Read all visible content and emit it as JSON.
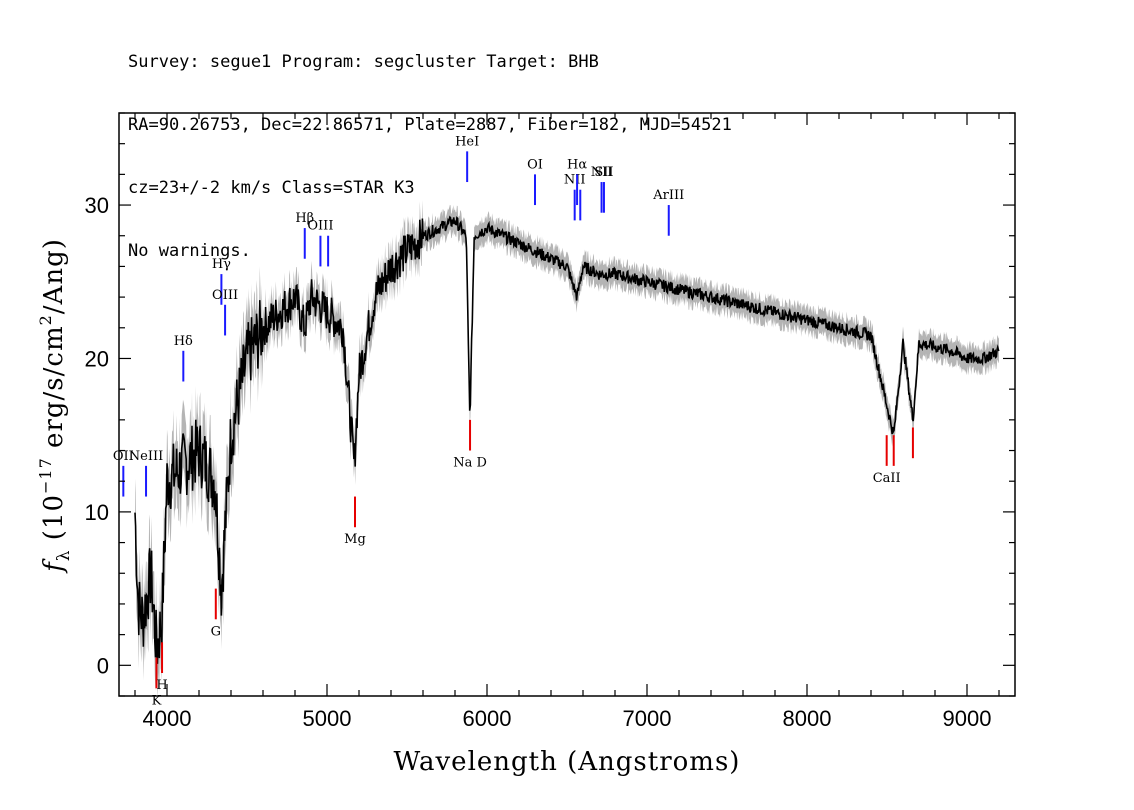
{
  "header": {
    "line1": "Survey: segue1 Program: segcluster Target: BHB",
    "line2": "RA=90.26753, Dec=22.86571, Plate=2887, Fiber=182, MJD=54521",
    "line3": "cz=23+/-2 km/s Class=STAR K3",
    "line4": "No warnings."
  },
  "chart_data": {
    "type": "line",
    "title": "",
    "xlabel": "Wavelength (Angstroms)",
    "ylabel": "f_λ (10^-17 erg/s/cm^2/Ang)",
    "ylabel_parts": {
      "flam": "f",
      "sub": "λ",
      "p1": " (10",
      "exp1": "−17",
      "p2": " erg/s/cm",
      "exp2": "2",
      "p3": "/Ang)"
    },
    "xlim": [
      3700,
      9300
    ],
    "ylim": [
      -2,
      36
    ],
    "xticks": [
      4000,
      5000,
      6000,
      7000,
      8000,
      9000
    ],
    "yticks": [
      0,
      10,
      20,
      30
    ],
    "colors": {
      "flux": "#000000",
      "error": "#b4b4b4",
      "emission": "#1a1aff",
      "absorption": "#e60000"
    },
    "spectrum_anchors": [
      [
        3800,
        10
      ],
      [
        3820,
        4
      ],
      [
        3850,
        3
      ],
      [
        3900,
        6
      ],
      [
        3935,
        1
      ],
      [
        3968,
        3
      ],
      [
        4000,
        12
      ],
      [
        4100,
        13
      ],
      [
        4200,
        14
      ],
      [
        4300,
        12
      ],
      [
        4340,
        5
      ],
      [
        4400,
        15
      ],
      [
        4500,
        20
      ],
      [
        4600,
        22
      ],
      [
        4700,
        23
      ],
      [
        4800,
        24
      ],
      [
        4861,
        22
      ],
      [
        4900,
        24
      ],
      [
        5000,
        23
      ],
      [
        5100,
        22
      ],
      [
        5170,
        13
      ],
      [
        5200,
        19
      ],
      [
        5300,
        24
      ],
      [
        5400,
        26
      ],
      [
        5500,
        27
      ],
      [
        5600,
        28
      ],
      [
        5700,
        28.5
      ],
      [
        5800,
        29
      ],
      [
        5870,
        28
      ],
      [
        5893,
        16
      ],
      [
        5920,
        28
      ],
      [
        6000,
        28.5
      ],
      [
        6100,
        28
      ],
      [
        6200,
        27.5
      ],
      [
        6300,
        27
      ],
      [
        6400,
        26.5
      ],
      [
        6500,
        26
      ],
      [
        6563,
        24
      ],
      [
        6600,
        26
      ],
      [
        6700,
        25.5
      ],
      [
        6800,
        25.5
      ],
      [
        7000,
        25
      ],
      [
        7200,
        24.5
      ],
      [
        7400,
        24
      ],
      [
        7600,
        23.5
      ],
      [
        7800,
        23
      ],
      [
        8000,
        22.5
      ],
      [
        8200,
        22
      ],
      [
        8400,
        21.5
      ],
      [
        8498,
        17
      ],
      [
        8542,
        15
      ],
      [
        8600,
        21
      ],
      [
        8662,
        16
      ],
      [
        8700,
        21
      ],
      [
        8900,
        20.5
      ],
      [
        9000,
        20
      ],
      [
        9100,
        20
      ],
      [
        9200,
        20.5
      ]
    ],
    "emission_lines": [
      {
        "label": "OII",
        "wave": 3727,
        "y1": 11,
        "y2": 13
      },
      {
        "label": "NeIII",
        "wave": 3869,
        "y1": 11,
        "y2": 13
      },
      {
        "label": "Hδ",
        "wave": 4102,
        "y1": 18.5,
        "y2": 20.5
      },
      {
        "label": "Hγ",
        "wave": 4340,
        "y1": 23.5,
        "y2": 25.5
      },
      {
        "label": "OIII",
        "wave": 4363,
        "y1": 21.5,
        "y2": 23.5
      },
      {
        "label": "Hβ",
        "wave": 4861,
        "y1": 26.5,
        "y2": 28.5
      },
      {
        "label": "OIII",
        "wave": 4959,
        "y1": 26,
        "y2": 28
      },
      {
        "label": "",
        "wave": 5007,
        "y1": 26,
        "y2": 28
      },
      {
        "label": "HeI",
        "wave": 5876,
        "y1": 31.5,
        "y2": 33.5
      },
      {
        "label": "OI",
        "wave": 6300,
        "y1": 30,
        "y2": 32
      },
      {
        "label": "NII",
        "wave": 6548,
        "y1": 29,
        "y2": 31
      },
      {
        "label": "Hα",
        "wave": 6563,
        "y1": 30,
        "y2": 32
      },
      {
        "label": "",
        "wave": 6583,
        "y1": 29,
        "y2": 31
      },
      {
        "label": "NII",
        "wave": 6716,
        "y1": 29.5,
        "y2": 31.5
      },
      {
        "label": "SII",
        "wave": 6731,
        "y1": 29.5,
        "y2": 31.5
      },
      {
        "label": "ArIII",
        "wave": 7136,
        "y1": 28,
        "y2": 30
      }
    ],
    "absorption_lines": [
      {
        "label": "K",
        "wave": 3934,
        "y1": -1.5,
        "y2": 0.5
      },
      {
        "label": "H",
        "wave": 3969,
        "y1": -0.5,
        "y2": 1.5
      },
      {
        "label": "G",
        "wave": 4305,
        "y1": 3,
        "y2": 5
      },
      {
        "label": "Mg",
        "wave": 5175,
        "y1": 9,
        "y2": 11
      },
      {
        "label": "Na D",
        "wave": 5894,
        "y1": 14,
        "y2": 16
      },
      {
        "label": "CaII",
        "wave": 8498,
        "y1": 13,
        "y2": 15
      },
      {
        "label": "",
        "wave": 8542,
        "y1": 13,
        "y2": 15
      },
      {
        "label": "",
        "wave": 8662,
        "y1": 13.5,
        "y2": 15.5
      }
    ]
  }
}
